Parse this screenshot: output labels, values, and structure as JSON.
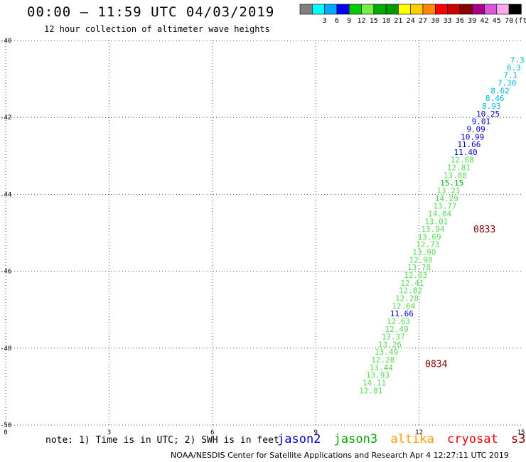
{
  "header": {
    "title": "00:00 – 11:59 UTC 04/03/2019",
    "subtitle": "12 hour collection of altimeter wave heights"
  },
  "legend": {
    "unit": "(ft)",
    "bins": [
      {
        "label": "",
        "color": "#808080"
      },
      {
        "label": "3",
        "color": "#00ffff"
      },
      {
        "label": "6",
        "color": "#00aaff"
      },
      {
        "label": "9",
        "color": "#0000ee"
      },
      {
        "label": "12",
        "color": "#00cc00"
      },
      {
        "label": "15",
        "color": "#77ee44"
      },
      {
        "label": "18",
        "color": "#00aa00"
      },
      {
        "label": "21",
        "color": "#009900"
      },
      {
        "label": "24",
        "color": "#ffff00"
      },
      {
        "label": "27",
        "color": "#ffcc00"
      },
      {
        "label": "30",
        "color": "#ff8800"
      },
      {
        "label": "33",
        "color": "#ff0000"
      },
      {
        "label": "36",
        "color": "#cc0000"
      },
      {
        "label": "39",
        "color": "#880000"
      },
      {
        "label": "42",
        "color": "#aa0088"
      },
      {
        "label": "45",
        "color": "#dd55dd"
      },
      {
        "label": "70",
        "color": "#ffaaee"
      },
      {
        "label": "",
        "color": "#000000"
      }
    ]
  },
  "chart_data": {
    "type": "scatter",
    "title": "12 hour collection of altimeter wave heights",
    "xlim": [
      0,
      15
    ],
    "ylim": [
      -50,
      -40
    ],
    "x_ticks": [
      {
        "v": 0,
        "label": "0"
      },
      {
        "v": 3,
        "label": "3"
      },
      {
        "v": 6,
        "label": "6"
      },
      {
        "v": 9,
        "label": "9"
      },
      {
        "v": 12,
        "label": "12"
      },
      {
        "v": 15,
        "label": "15"
      }
    ],
    "y_ticks": [
      {
        "v": -40,
        "label": "-40"
      },
      {
        "v": -42,
        "label": "-42"
      },
      {
        "v": -44,
        "label": "-44"
      },
      {
        "v": -46,
        "label": "-46"
      },
      {
        "v": -48,
        "label": "-48"
      },
      {
        "v": -50,
        "label": "-50"
      }
    ],
    "grid": true,
    "points": [
      {
        "lon": 14.85,
        "lat": -40.5,
        "label": "7.3",
        "color": "#00b8e0"
      },
      {
        "lon": 14.75,
        "lat": -40.7,
        "label": "6.3",
        "color": "#00b8e0"
      },
      {
        "lon": 14.65,
        "lat": -40.9,
        "label": "7.1",
        "color": "#00b8e0"
      },
      {
        "lon": 14.55,
        "lat": -41.1,
        "label": "7.30",
        "color": "#00b8e0"
      },
      {
        "lon": 14.35,
        "lat": -41.3,
        "label": "8.62",
        "color": "#00b8e0"
      },
      {
        "lon": 14.2,
        "lat": -41.5,
        "label": "8.46",
        "color": "#00b8e0"
      },
      {
        "lon": 14.1,
        "lat": -41.7,
        "label": "8.93",
        "color": "#00b8e0"
      },
      {
        "lon": 14.0,
        "lat": -41.9,
        "label": "10.25",
        "color": "#0000cc"
      },
      {
        "lon": 13.8,
        "lat": -42.1,
        "label": "9.01",
        "color": "#0000cc"
      },
      {
        "lon": 13.65,
        "lat": -42.3,
        "label": "9.09",
        "color": "#0000cc"
      },
      {
        "lon": 13.55,
        "lat": -42.5,
        "label": "10.99",
        "color": "#0000cc"
      },
      {
        "lon": 13.45,
        "lat": -42.7,
        "label": "11.66",
        "color": "#0000cc"
      },
      {
        "lon": 13.35,
        "lat": -42.9,
        "label": "11.40",
        "color": "#0000cc"
      },
      {
        "lon": 13.25,
        "lat": -43.1,
        "label": "12.68",
        "color": "#55dd55"
      },
      {
        "lon": 13.15,
        "lat": -43.3,
        "label": "12.81",
        "color": "#55dd55"
      },
      {
        "lon": 13.05,
        "lat": -43.5,
        "label": "13.88",
        "color": "#55dd55"
      },
      {
        "lon": 12.95,
        "lat": -43.7,
        "label": "15.15",
        "color": "#00aa00"
      },
      {
        "lon": 12.85,
        "lat": -43.9,
        "label": "13.21",
        "color": "#55dd55"
      },
      {
        "lon": 12.8,
        "lat": -44.1,
        "label": "14.29",
        "color": "#55dd55"
      },
      {
        "lon": 12.75,
        "lat": -44.3,
        "label": "13.77",
        "color": "#55dd55"
      },
      {
        "lon": 12.6,
        "lat": -44.5,
        "label": "14.04",
        "color": "#55dd55"
      },
      {
        "lon": 12.5,
        "lat": -44.7,
        "label": "13.01",
        "color": "#55dd55"
      },
      {
        "lon": 12.4,
        "lat": -44.9,
        "label": "13.94",
        "color": "#55dd55"
      },
      {
        "lon": 12.3,
        "lat": -45.1,
        "label": "13.69",
        "color": "#55dd55"
      },
      {
        "lon": 12.25,
        "lat": -45.3,
        "label": "12.73",
        "color": "#55dd55"
      },
      {
        "lon": 12.15,
        "lat": -45.5,
        "label": "13.90",
        "color": "#55dd55"
      },
      {
        "lon": 12.05,
        "lat": -45.7,
        "label": "12.90",
        "color": "#55dd55"
      },
      {
        "lon": 12.0,
        "lat": -45.9,
        "label": "13.78",
        "color": "#55dd55"
      },
      {
        "lon": 11.9,
        "lat": -46.1,
        "label": "12.63",
        "color": "#55dd55"
      },
      {
        "lon": 11.8,
        "lat": -46.3,
        "label": "12.41",
        "color": "#55dd55"
      },
      {
        "lon": 11.75,
        "lat": -46.5,
        "label": "12.82",
        "color": "#55dd55"
      },
      {
        "lon": 11.65,
        "lat": -46.7,
        "label": "12.28",
        "color": "#55dd55"
      },
      {
        "lon": 11.55,
        "lat": -46.9,
        "label": "12.64",
        "color": "#55dd55"
      },
      {
        "lon": 11.5,
        "lat": -47.1,
        "label": "11.66",
        "color": "#0000cc"
      },
      {
        "lon": 11.4,
        "lat": -47.3,
        "label": "12.63",
        "color": "#55dd55"
      },
      {
        "lon": 11.35,
        "lat": -47.5,
        "label": "12.49",
        "color": "#55dd55"
      },
      {
        "lon": 11.25,
        "lat": -47.7,
        "label": "13.37",
        "color": "#55dd55"
      },
      {
        "lon": 11.15,
        "lat": -47.9,
        "label": "13.26",
        "color": "#55dd55"
      },
      {
        "lon": 11.05,
        "lat": -48.1,
        "label": "13.49",
        "color": "#55dd55"
      },
      {
        "lon": 10.95,
        "lat": -48.3,
        "label": "12.28",
        "color": "#55dd55"
      },
      {
        "lon": 10.9,
        "lat": -48.5,
        "label": "13.44",
        "color": "#55dd55"
      },
      {
        "lon": 10.8,
        "lat": -48.7,
        "label": "13.93",
        "color": "#55dd55"
      },
      {
        "lon": 10.7,
        "lat": -48.9,
        "label": "14.11",
        "color": "#55dd55"
      },
      {
        "lon": 10.6,
        "lat": -49.1,
        "label": "12.81",
        "color": "#55dd55"
      }
    ],
    "time_labels": [
      {
        "lon": 13.9,
        "lat": -44.9,
        "label": "0833",
        "color": "#880000"
      },
      {
        "lon": 12.5,
        "lat": -48.4,
        "label": "0834",
        "color": "#880000"
      }
    ]
  },
  "footer": {
    "note": "note: 1) Time is in UTC; 2) SWH is in feet",
    "satellites": [
      {
        "name": "jason2",
        "color": "#0000cc"
      },
      {
        "name": "jason3",
        "color": "#00aa00"
      },
      {
        "name": "altika",
        "color": "#ff9900"
      },
      {
        "name": "cryosat",
        "color": "#ee0000"
      },
      {
        "name": "s3a",
        "color": "#880000"
      }
    ],
    "credit": "NOAA/NESDIS Center for Satellite Applications and Research    Apr  4 12:27:11 UTC 2019"
  }
}
